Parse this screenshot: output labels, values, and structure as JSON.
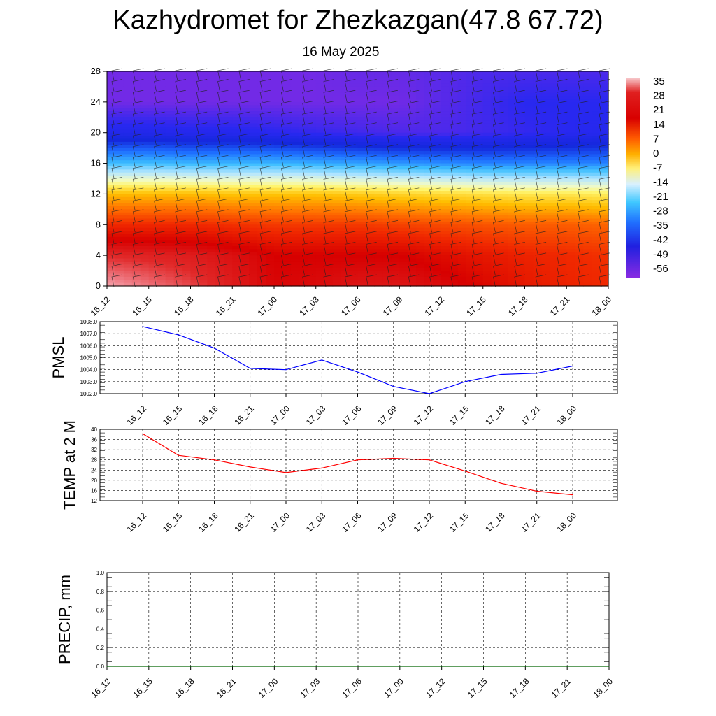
{
  "header": {
    "title": "Kazhydromet for Zhezkazgan(47.8 67.72)",
    "date": "16 May 2025"
  },
  "chart_data": [
    {
      "type": "heatmap",
      "title": "",
      "xlabel": "",
      "ylabel": "",
      "x_ticks": [
        "16_12",
        "16_15",
        "16_18",
        "16_21",
        "17_00",
        "17_03",
        "17_06",
        "17_09",
        "17_12",
        "17_15",
        "17_18",
        "17_21",
        "18_00"
      ],
      "y_ticks": [
        0,
        4,
        8,
        12,
        16,
        20,
        24,
        28
      ],
      "ylim": [
        0,
        28
      ],
      "colorbar": {
        "labels": [
          35,
          28,
          21,
          14,
          7,
          0,
          -7,
          -14,
          -21,
          -28,
          -35,
          -42,
          -49,
          -56
        ],
        "range": [
          -60,
          38
        ]
      },
      "profiles": [
        {
          "time": "16_12",
          "heights": [
            0,
            4,
            8,
            12,
            16,
            20,
            24,
            28
          ],
          "temps": [
            36,
            28,
            14,
            -2,
            -30,
            -50,
            -58,
            -58
          ]
        },
        {
          "time": "16_15",
          "heights": [
            0,
            4,
            8,
            12,
            16,
            20,
            24,
            28
          ],
          "temps": [
            33,
            27,
            14,
            -2,
            -30,
            -50,
            -58,
            -58
          ]
        },
        {
          "time": "16_18",
          "heights": [
            0,
            4,
            8,
            12,
            16,
            20,
            24,
            28
          ],
          "temps": [
            30,
            26,
            14,
            -2,
            -31,
            -51,
            -58,
            -58
          ]
        },
        {
          "time": "16_21",
          "heights": [
            0,
            4,
            8,
            12,
            16,
            20,
            24,
            28
          ],
          "temps": [
            26,
            24,
            13,
            -3,
            -31,
            -51,
            -58,
            -58
          ]
        },
        {
          "time": "17_00",
          "heights": [
            0,
            4,
            8,
            12,
            16,
            20,
            24,
            28
          ],
          "temps": [
            22,
            21,
            12,
            -3,
            -31,
            -52,
            -58,
            -58
          ]
        },
        {
          "time": "17_03",
          "heights": [
            0,
            4,
            8,
            12,
            16,
            20,
            24,
            28
          ],
          "temps": [
            23,
            21,
            12,
            -3,
            -32,
            -53,
            -58,
            -58
          ]
        },
        {
          "time": "17_06",
          "heights": [
            0,
            4,
            8,
            12,
            16,
            20,
            24,
            28
          ],
          "temps": [
            25,
            21,
            12,
            -4,
            -33,
            -54,
            -58,
            -57
          ]
        },
        {
          "time": "17_09",
          "heights": [
            0,
            4,
            8,
            12,
            16,
            20,
            24,
            28
          ],
          "temps": [
            25,
            21,
            11,
            -5,
            -34,
            -55,
            -58,
            -57
          ]
        },
        {
          "time": "17_12",
          "heights": [
            0,
            4,
            8,
            12,
            16,
            20,
            24,
            28
          ],
          "temps": [
            23,
            19,
            10,
            -6,
            -35,
            -55,
            -56,
            -56
          ]
        },
        {
          "time": "17_15",
          "heights": [
            0,
            4,
            8,
            12,
            16,
            20,
            24,
            28
          ],
          "temps": [
            20,
            17,
            9,
            -7,
            -36,
            -54,
            -54,
            -55
          ]
        },
        {
          "time": "17_18",
          "heights": [
            0,
            4,
            8,
            12,
            16,
            20,
            24,
            28
          ],
          "temps": [
            17,
            15,
            8,
            -8,
            -36,
            -53,
            -52,
            -55
          ]
        },
        {
          "time": "17_21",
          "heights": [
            0,
            4,
            8,
            12,
            16,
            20,
            24,
            28
          ],
          "temps": [
            15,
            14,
            8,
            -8,
            -36,
            -52,
            -52,
            -55
          ]
        },
        {
          "time": "18_00",
          "heights": [
            0,
            4,
            8,
            12,
            16,
            20,
            24,
            28
          ],
          "temps": [
            14,
            13,
            7,
            -9,
            -36,
            -51,
            -52,
            -55
          ]
        }
      ]
    },
    {
      "type": "line",
      "ylabel": "PMSL",
      "x_ticks": [
        "16_12",
        "16_15",
        "16_18",
        "16_21",
        "17_00",
        "17_03",
        "17_06",
        "17_09",
        "17_12",
        "17_15",
        "17_18",
        "17_21",
        "18_00"
      ],
      "y_ticks": [
        "1002.0",
        "1003.0",
        "1004.0",
        "1005.0",
        "1006.0",
        "1007.0",
        "1008.0"
      ],
      "ylim": [
        1002,
        1008
      ],
      "color": "#0000ff",
      "values": [
        1007.6,
        1006.9,
        1005.8,
        1004.1,
        1004.0,
        1004.8,
        1003.8,
        1002.6,
        1002.0,
        1003.0,
        1003.6,
        1003.7,
        1004.3
      ]
    },
    {
      "type": "line",
      "ylabel": "TEMP at 2 M",
      "x_ticks": [
        "16_12",
        "16_15",
        "16_18",
        "16_21",
        "17_00",
        "17_03",
        "17_06",
        "17_09",
        "17_12",
        "17_15",
        "17_18",
        "17_21",
        "18_00"
      ],
      "y_ticks": [
        12,
        16,
        20,
        24,
        28,
        32,
        36,
        40
      ],
      "ylim": [
        12,
        40
      ],
      "color": "#ff0000",
      "values": [
        38.3,
        29.8,
        28.0,
        25.2,
        23.0,
        24.8,
        28.0,
        28.6,
        28.0,
        23.6,
        18.8,
        15.7,
        14.3
      ]
    },
    {
      "type": "line",
      "ylabel": "PRECIP, mm",
      "x_ticks": [
        "16_12",
        "16_15",
        "16_18",
        "16_21",
        "17_00",
        "17_03",
        "17_06",
        "17_09",
        "17_12",
        "17_15",
        "17_18",
        "17_21",
        "18_00"
      ],
      "y_ticks": [
        "0.0",
        "0.2",
        "0.4",
        "0.6",
        "0.8",
        "1.0"
      ],
      "ylim": [
        0,
        1
      ],
      "color": "#006400",
      "values": [
        0,
        0,
        0,
        0,
        0,
        0,
        0,
        0,
        0,
        0,
        0,
        0,
        0
      ]
    }
  ]
}
